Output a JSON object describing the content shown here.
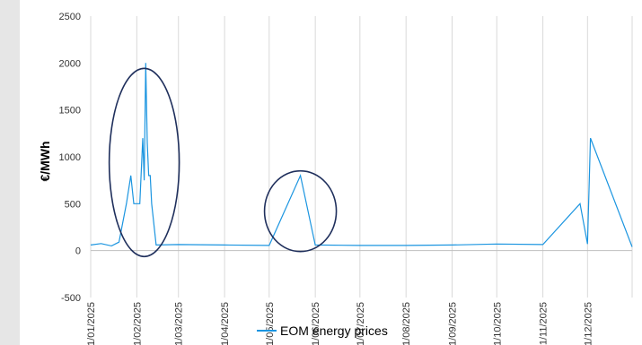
{
  "chart_data": {
    "type": "line",
    "title": "",
    "xlabel": "",
    "ylabel": "€/MWh",
    "ylim": [
      -500,
      2500
    ],
    "yticks": [
      -500,
      0,
      500,
      1000,
      1500,
      2000,
      2500
    ],
    "xlim": [
      "01/01/2025",
      "31/12/2025"
    ],
    "x_tick_labels": [
      "01/01/2025",
      "01/02/2025",
      "01/03/2025",
      "01/04/2025",
      "01/05/2025",
      "01/06/2025",
      "01/07/2025",
      "01/08/2025",
      "01/09/2025",
      "01/10/2025",
      "01/11/2025",
      "01/12/2025"
    ],
    "grid": "vertical",
    "legend_position": "bottom",
    "line_color": "#1b95e0",
    "annotation_color": "#1f2f5c",
    "series": [
      {
        "name": "EOM energy prices",
        "points": [
          [
            "01/01/2025",
            60
          ],
          [
            "08/01/2025",
            75
          ],
          [
            "15/01/2025",
            50
          ],
          [
            "20/01/2025",
            90
          ],
          [
            "25/01/2025",
            500
          ],
          [
            "28/01/2025",
            800
          ],
          [
            "30/01/2025",
            500
          ],
          [
            "01/02/2025",
            500
          ],
          [
            "03/02/2025",
            500
          ],
          [
            "05/02/2025",
            1200
          ],
          [
            "06/02/2025",
            750
          ],
          [
            "07/02/2025",
            2000
          ],
          [
            "08/02/2025",
            1150
          ],
          [
            "09/02/2025",
            800
          ],
          [
            "10/02/2025",
            800
          ],
          [
            "11/02/2025",
            500
          ],
          [
            "14/02/2025",
            60
          ],
          [
            "01/03/2025",
            65
          ],
          [
            "01/04/2025",
            60
          ],
          [
            "01/05/2025",
            55
          ],
          [
            "22/05/2025",
            800
          ],
          [
            "01/06/2025",
            60
          ],
          [
            "01/07/2025",
            55
          ],
          [
            "01/08/2025",
            55
          ],
          [
            "01/09/2025",
            60
          ],
          [
            "01/10/2025",
            70
          ],
          [
            "01/11/2025",
            65
          ],
          [
            "26/11/2025",
            500
          ],
          [
            "01/12/2025",
            70
          ],
          [
            "03/12/2025",
            1200
          ],
          [
            "31/12/2025",
            40
          ]
        ]
      }
    ]
  }
}
